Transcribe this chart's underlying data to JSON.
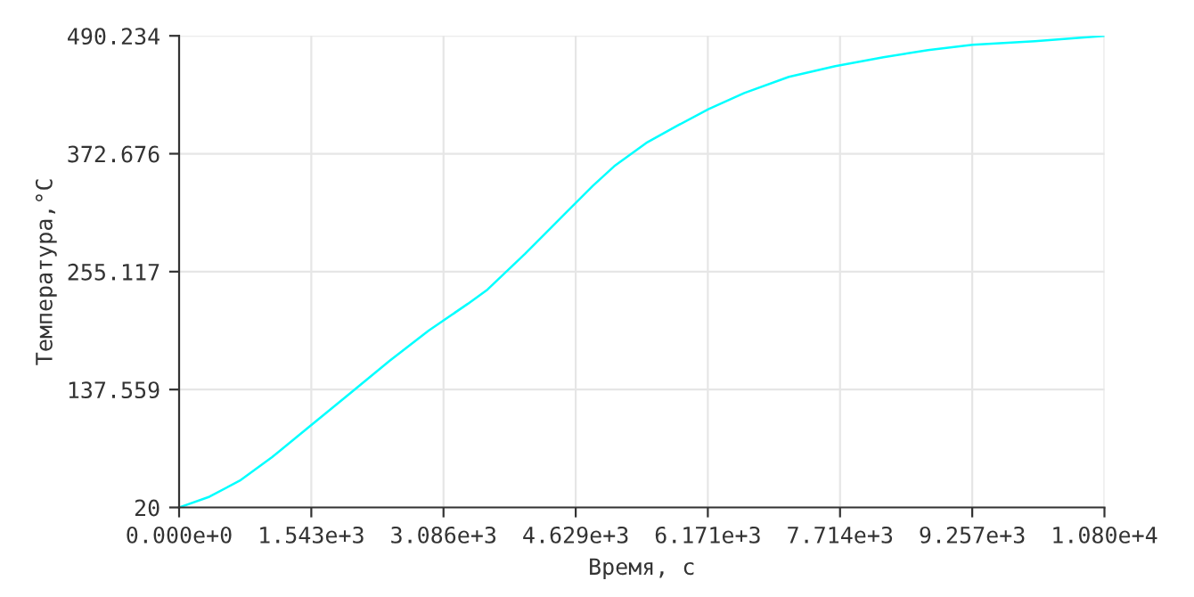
{
  "chart_data": {
    "type": "line",
    "xlabel": "Время, с",
    "ylabel": "Температура,°C",
    "x": [
      0,
      354,
      708,
      1082,
      1540,
      1998,
      2456,
      2913,
      3371,
      3600,
      4037,
      4495,
      4828,
      5078,
      5452,
      5827,
      6181,
      6597,
      7117,
      7658,
      8220,
      8740,
      9260,
      9989,
      10800
    ],
    "series": [
      {
        "color": "#00ffff",
        "values": [
          20,
          30.7,
          46.7,
          69.9,
          101.9,
          134.0,
          166.1,
          196.3,
          223.1,
          237.3,
          272.9,
          312.1,
          340.6,
          360.2,
          383.4,
          401.2,
          417.2,
          433.2,
          449.3,
          460,
          468.9,
          476,
          481.3,
          484.9,
          490.2
        ]
      }
    ],
    "xlim": [
      0,
      10800
    ],
    "ylim": [
      20,
      490.234
    ],
    "xticks": [
      {
        "value": 0,
        "label": "0.000e+0"
      },
      {
        "value": 1543,
        "label": "1.543e+3"
      },
      {
        "value": 3086,
        "label": "3.086e+3"
      },
      {
        "value": 4629,
        "label": "4.629e+3"
      },
      {
        "value": 6171,
        "label": "6.171e+3"
      },
      {
        "value": 7714,
        "label": "7.714e+3"
      },
      {
        "value": 9257,
        "label": "9.257e+3"
      },
      {
        "value": 10800,
        "label": "1.080e+4"
      }
    ],
    "yticks": [
      20,
      137.559,
      255.117,
      372.676,
      490.234
    ],
    "grid": true,
    "marker": "none",
    "line_style": "solid"
  }
}
